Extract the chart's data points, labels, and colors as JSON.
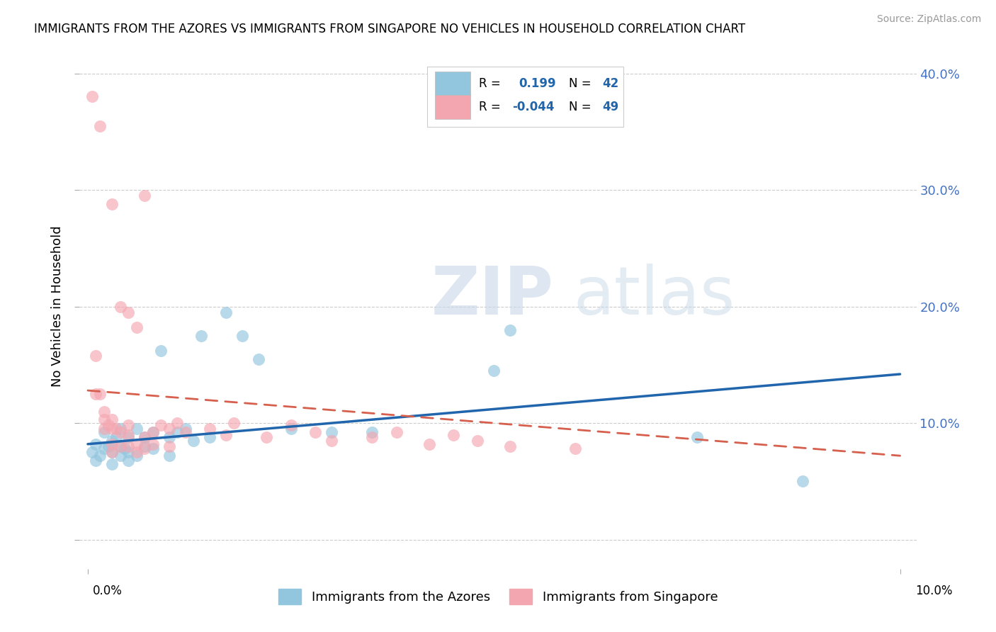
{
  "title": "IMMIGRANTS FROM THE AZORES VS IMMIGRANTS FROM SINGAPORE NO VEHICLES IN HOUSEHOLD CORRELATION CHART",
  "source": "Source: ZipAtlas.com",
  "ylabel": "No Vehicles in Household",
  "xlim": [
    -0.001,
    0.102
  ],
  "ylim": [
    -0.025,
    0.425
  ],
  "ytick_vals": [
    0.0,
    0.1,
    0.2,
    0.3,
    0.4
  ],
  "ytick_labels_right": [
    "",
    "10.0%",
    "20.0%",
    "30.0%",
    "40.0%"
  ],
  "blue_color": "#92c5de",
  "pink_color": "#f4a6b0",
  "blue_line_color": "#2166ac",
  "pink_line_color": "#d6604d",
  "watermark_zip": "ZIP",
  "watermark_atlas": "atlas",
  "blue_line_y0": 0.082,
  "blue_line_y1": 0.142,
  "pink_line_y0": 0.128,
  "pink_line_y1": 0.072,
  "blue_scatter_x": [
    0.0005,
    0.001,
    0.001,
    0.0015,
    0.002,
    0.002,
    0.0025,
    0.003,
    0.003,
    0.003,
    0.0035,
    0.004,
    0.004,
    0.004,
    0.0045,
    0.005,
    0.005,
    0.005,
    0.006,
    0.006,
    0.007,
    0.007,
    0.008,
    0.008,
    0.009,
    0.01,
    0.01,
    0.011,
    0.012,
    0.013,
    0.014,
    0.015,
    0.017,
    0.019,
    0.021,
    0.025,
    0.03,
    0.035,
    0.05,
    0.052,
    0.075,
    0.088
  ],
  "blue_scatter_y": [
    0.075,
    0.068,
    0.082,
    0.072,
    0.078,
    0.092,
    0.08,
    0.065,
    0.075,
    0.085,
    0.088,
    0.072,
    0.08,
    0.095,
    0.078,
    0.068,
    0.075,
    0.088,
    0.072,
    0.095,
    0.08,
    0.088,
    0.078,
    0.092,
    0.162,
    0.072,
    0.088,
    0.092,
    0.095,
    0.085,
    0.175,
    0.088,
    0.195,
    0.175,
    0.155,
    0.095,
    0.092,
    0.092,
    0.145,
    0.18,
    0.088,
    0.05
  ],
  "pink_scatter_x": [
    0.0005,
    0.001,
    0.001,
    0.0015,
    0.0015,
    0.002,
    0.002,
    0.002,
    0.0025,
    0.003,
    0.003,
    0.003,
    0.003,
    0.003,
    0.0035,
    0.004,
    0.004,
    0.004,
    0.005,
    0.005,
    0.005,
    0.005,
    0.006,
    0.006,
    0.006,
    0.007,
    0.007,
    0.007,
    0.008,
    0.008,
    0.009,
    0.01,
    0.01,
    0.011,
    0.012,
    0.015,
    0.017,
    0.018,
    0.022,
    0.025,
    0.028,
    0.03,
    0.035,
    0.038,
    0.042,
    0.045,
    0.048,
    0.052,
    0.06
  ],
  "pink_scatter_y": [
    0.38,
    0.125,
    0.158,
    0.125,
    0.355,
    0.095,
    0.103,
    0.11,
    0.098,
    0.075,
    0.082,
    0.095,
    0.103,
    0.288,
    0.095,
    0.08,
    0.092,
    0.2,
    0.08,
    0.09,
    0.098,
    0.195,
    0.075,
    0.082,
    0.182,
    0.078,
    0.088,
    0.295,
    0.082,
    0.092,
    0.098,
    0.08,
    0.095,
    0.1,
    0.092,
    0.095,
    0.09,
    0.1,
    0.088,
    0.098,
    0.092,
    0.085,
    0.088,
    0.092,
    0.082,
    0.09,
    0.085,
    0.08,
    0.078
  ]
}
